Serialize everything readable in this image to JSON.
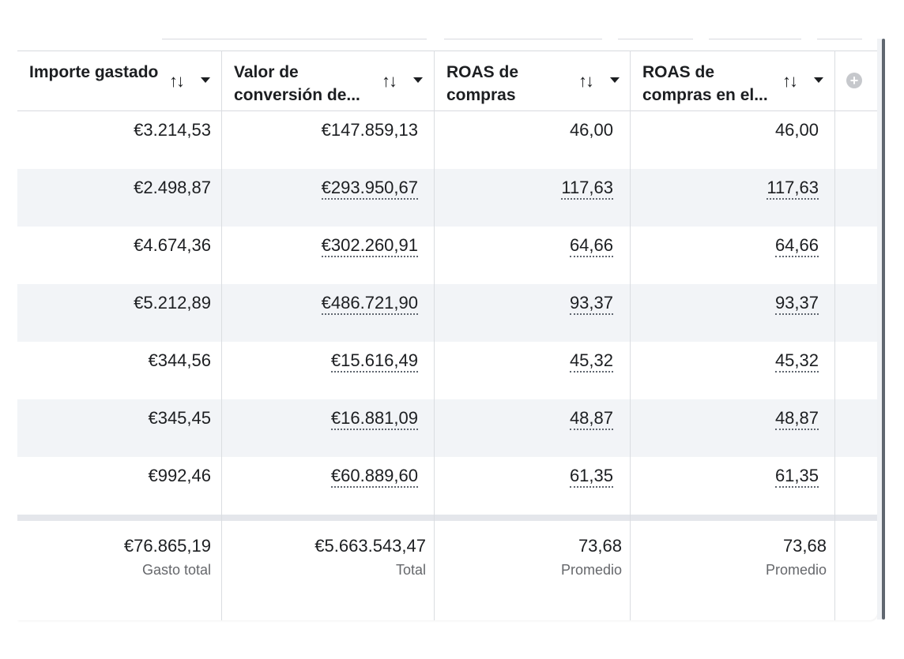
{
  "columns": [
    {
      "title": "Importe gastado",
      "sort_icon": "↑↓"
    },
    {
      "title": "Valor de conversión de...",
      "sort_icon": "↑↓"
    },
    {
      "title": "ROAS de compras",
      "sort_icon": "↑↓"
    },
    {
      "title": "ROAS de compras en el...",
      "sort_icon": "↑↓"
    }
  ],
  "add_column_icon": "plus-circle-icon",
  "rows": [
    [
      "€3.214,53",
      "€147.859,13",
      "46,00",
      "46,00"
    ],
    [
      "€2.498,87",
      "€293.950,67",
      "117,63",
      "117,63"
    ],
    [
      "€4.674,36",
      "€302.260,91",
      "64,66",
      "64,66"
    ],
    [
      "€5.212,89",
      "€486.721,90",
      "93,37",
      "93,37"
    ],
    [
      "€344,56",
      "€15.616,49",
      "45,32",
      "45,32"
    ],
    [
      "€345,45",
      "€16.881,09",
      "48,87",
      "48,87"
    ],
    [
      "€992,46",
      "€60.889,60",
      "61,35",
      "61,35"
    ]
  ],
  "totals": [
    {
      "value": "€76.865,19",
      "label": "Gasto total"
    },
    {
      "value": "€5.663.543,47",
      "label": "Total"
    },
    {
      "value": "73,68",
      "label": "Promedio"
    },
    {
      "value": "73,68",
      "label": "Promedio"
    }
  ],
  "colors": {
    "border": "#dadde1",
    "alt_row": "#f2f4f7",
    "text": "#1c1e21",
    "muted": "#65676b"
  }
}
